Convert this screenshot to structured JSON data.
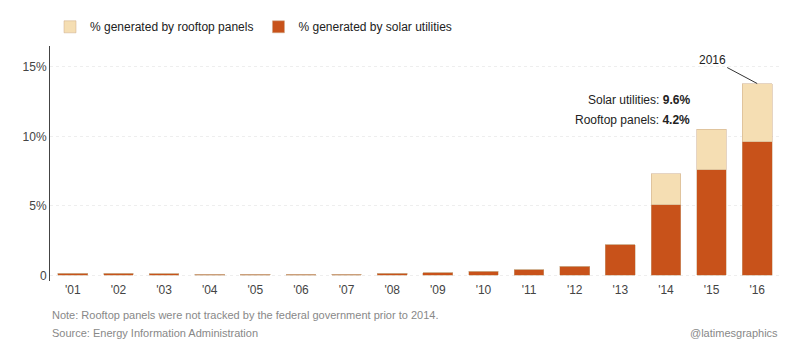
{
  "chart_data": {
    "type": "bar",
    "stacked": true,
    "categories": [
      "'01",
      "'02",
      "'03",
      "'04",
      "'05",
      "'06",
      "'07",
      "'08",
      "'09",
      "'10",
      "'11",
      "'12",
      "'13",
      "'14",
      "'15",
      "'16"
    ],
    "series": [
      {
        "name": "% generated by solar utilities",
        "color": "#C8521A",
        "values": [
          0.15,
          0.15,
          0.12,
          0.1,
          0.1,
          0.1,
          0.1,
          0.15,
          0.2,
          0.3,
          0.4,
          0.65,
          2.2,
          5.1,
          7.6,
          9.6
        ]
      },
      {
        "name": "% generated by rooftop panels",
        "color": "#F5DEB3",
        "values": [
          0.0,
          0.0,
          0.0,
          0.0,
          0.0,
          0.0,
          0.0,
          0.0,
          0.0,
          0.0,
          0.0,
          0.0,
          0.0,
          2.2,
          2.9,
          4.2
        ]
      }
    ],
    "ylim": [
      -0.4,
      16.5
    ],
    "yticks": [
      0,
      {
        "value": 5,
        "label": "5%"
      },
      {
        "value": 10,
        "label": "10%"
      },
      {
        "value": 15,
        "label": "15%"
      }
    ],
    "grid": true,
    "legend": "top left",
    "annotations": [
      "2016",
      "Solar utilities: 9.6%",
      "Rooftop panels: 4.2%",
      "Note: Rooftop panels were not tracked by the federal government prior to 2014.",
      "Source: Energy Information Administration",
      "@latimesgraphics"
    ]
  }
}
